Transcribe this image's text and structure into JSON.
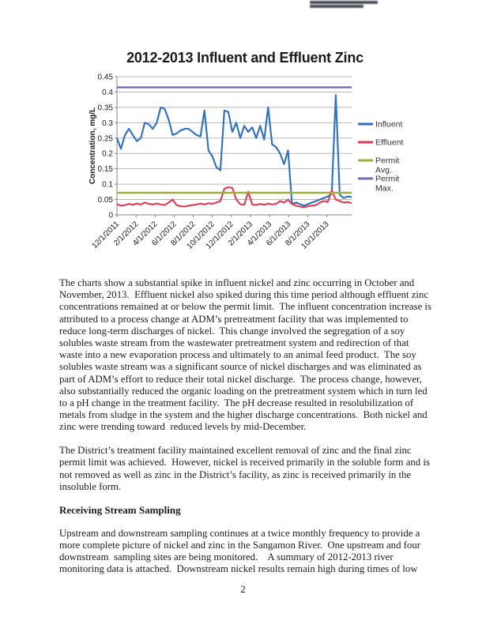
{
  "page": {
    "number": "2"
  },
  "chart_data": {
    "type": "line",
    "title": "2012-2013 Influent and Effluent Zinc",
    "xlabel": "",
    "ylabel": "Concentration, mg/L",
    "ylim": [
      0,
      0.45
    ],
    "grid": true,
    "legend_position": "right",
    "ytick_labels": [
      "0.45",
      "0.4",
      "0.35",
      "0.3",
      "0.25",
      "0.2",
      "0.15",
      "0.1",
      "0.05",
      "0"
    ],
    "xtick_labels": [
      "12/1/2011",
      "2/1/2012",
      "4/1/2012",
      "6/1/2012",
      "8/1/2012",
      "10/1/2012",
      "12/1/2012",
      "2/1/2013",
      "4/1/2013",
      "6/1/2013",
      "8/1/2013",
      "10/1/2013"
    ],
    "x_axis": {
      "start": "12/1/2011",
      "tick_interval_months": 2,
      "total_months": 24.6
    },
    "series": [
      {
        "name": "Influent",
        "color": "#2d6fc4",
        "values": [
          0.25,
          0.215,
          0.26,
          0.28,
          0.26,
          0.24,
          0.25,
          0.3,
          0.295,
          0.28,
          0.3,
          0.35,
          0.345,
          0.31,
          0.26,
          0.265,
          0.275,
          0.28,
          0.28,
          0.27,
          0.26,
          0.255,
          0.34,
          0.21,
          0.19,
          0.155,
          0.145,
          0.34,
          0.335,
          0.27,
          0.3,
          0.25,
          0.29,
          0.27,
          0.285,
          0.25,
          0.29,
          0.245,
          0.35,
          0.23,
          0.22,
          0.2,
          0.165,
          0.21,
          0.035,
          0.04,
          0.035,
          0.03,
          0.035,
          0.04,
          0.045,
          0.05,
          0.055,
          0.06,
          0.07,
          0.39,
          0.065,
          0.055,
          0.06,
          0.058
        ]
      },
      {
        "name": "Effluent",
        "color": "#e23a50",
        "values": [
          0.035,
          0.03,
          0.032,
          0.036,
          0.033,
          0.037,
          0.034,
          0.04,
          0.036,
          0.034,
          0.037,
          0.034,
          0.032,
          0.04,
          0.05,
          0.032,
          0.028,
          0.027,
          0.03,
          0.032,
          0.034,
          0.037,
          0.034,
          0.038,
          0.036,
          0.04,
          0.045,
          0.085,
          0.09,
          0.088,
          0.05,
          0.035,
          0.033,
          0.075,
          0.034,
          0.032,
          0.036,
          0.033,
          0.037,
          0.034,
          0.036,
          0.045,
          0.04,
          0.05,
          0.035,
          0.03,
          0.027,
          0.025,
          0.028,
          0.03,
          0.032,
          0.04,
          0.045,
          0.042,
          0.08,
          0.05,
          0.045,
          0.04,
          0.042,
          0.038
        ]
      },
      {
        "name": "Permit Avg.",
        "color": "#9fae3a",
        "constant": 0.072
      },
      {
        "name": "Permit Max.",
        "color": "#7b68b5",
        "constant": 0.415
      }
    ]
  },
  "document": {
    "paragraphs": [
      "The charts show a substantial spike in influent nickel and zinc occurring in October and November, 2013.  Effluent nickel also spiked during this time period although effluent zinc concentrations remained at or below the permit limit.  The influent concentration increase is attributed to a process change at ADM’s pretreatment facility that was implemented to reduce long-term discharges of nickel.  This change involved the segregation of a soy solubles waste stream from the wastewater pretreatment system and redirection of that waste into a new evaporation process and ultimately to an animal feed product.  The soy solubles waste stream was a significant source of nickel discharges and was eliminated as part of ADM’s effort to reduce their total nickel discharge.  The process change, however, also substantially reduced the organic loading on the pretreatment system which in turn led to a pH change in the treatment facility.  The pH decrease resulted in resolubilization of metals from sludge in the system and the higher discharge concentrations.  Both nickel and zinc were trending toward  reduced levels by mid-December.",
      "The District’s treatment facility maintained excellent removal of zinc and the final zinc permit limit was achieved.  However, nickel is received primarily in the soluble form and is not removed as well as zinc in the District’s facility, as zinc is received primarily in the insoluble form."
    ],
    "heading": "Receiving Stream Sampling",
    "paragraphs_after": [
      "Upstream and downstream sampling continues at a twice monthly frequency to provide a more complete picture of nickel and zinc in the Sangamon River.  One upstream and four downstream  sampling sites are being monitored.    A summary of 2012-2013 river monitoring data is attached.  Downstream nickel results remain high during times of low"
    ]
  }
}
